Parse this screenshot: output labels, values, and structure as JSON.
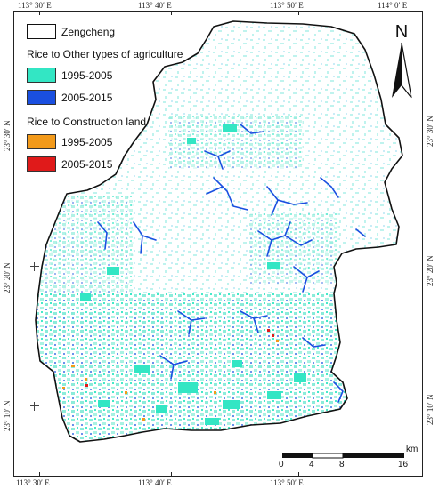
{
  "legend": {
    "boundary_label": "Zengcheng",
    "group1_title": "Rice to Other types of agriculture",
    "group1_items": [
      {
        "label": "1995-2005",
        "color": "#33e6c4"
      },
      {
        "label": "2005-2015",
        "color": "#1a4fe0"
      }
    ],
    "group2_title": "Rice to Construction land",
    "group2_items": [
      {
        "label": "1995-2005",
        "color": "#f39a1a"
      },
      {
        "label": "2005-2015",
        "color": "#e01a1a"
      }
    ]
  },
  "north_label": "N",
  "scale": {
    "unit": "km",
    "ticks": [
      "0",
      "4",
      "8",
      "16"
    ]
  },
  "coords": {
    "top": [
      "113° 30′ E",
      "113° 40′ E",
      "113° 50′ E",
      "114° 0′ E"
    ],
    "bottom": [
      "113° 30′ E",
      "113° 40′ E",
      "113° 50′ E"
    ],
    "left": [
      "23° 30′ N",
      "23° 20′ N",
      "23° 10′ N"
    ],
    "right": [
      "23° 30′ N",
      "23° 20′ N",
      "23° 10′ N"
    ]
  },
  "colors": {
    "outline": "#111111",
    "other_ag_1995_2005": "#33e6c4",
    "other_ag_2005_2015": "#1a4fe0",
    "construction_1995_2005": "#f39a1a",
    "construction_2005_2015": "#e01a1a",
    "light_cyan": "#bff3ee"
  }
}
